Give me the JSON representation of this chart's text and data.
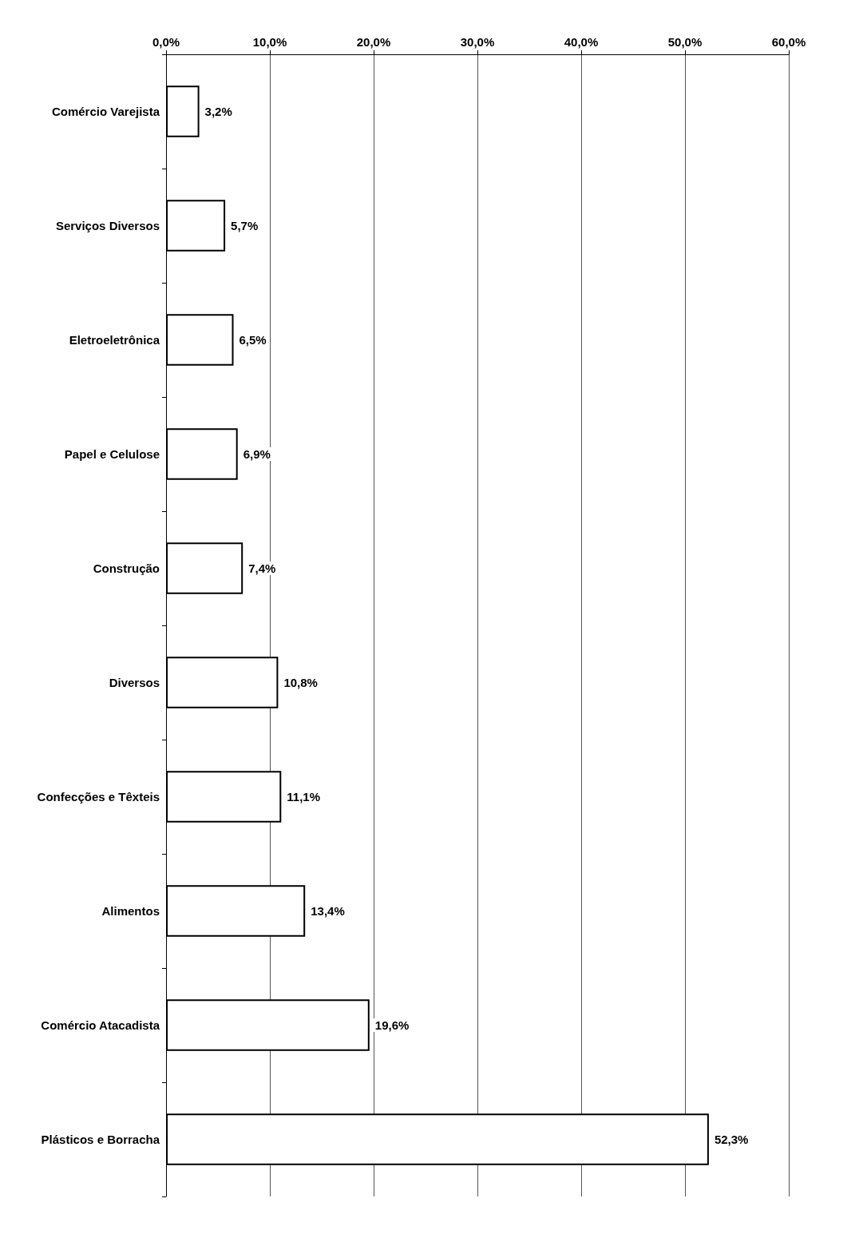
{
  "chart_data": {
    "type": "bar",
    "orientation": "horizontal",
    "categories": [
      "Comércio Varejista",
      "Serviços Diversos",
      "Eletroeletrônica",
      "Papel e Celulose",
      "Construção",
      "Diversos",
      "Confecções e Têxteis",
      "Alimentos",
      "Comércio Atacadista",
      "Plásticos e Borracha"
    ],
    "values": [
      3.2,
      5.7,
      6.5,
      6.9,
      7.4,
      10.8,
      11.1,
      13.4,
      19.6,
      52.3
    ],
    "value_labels": [
      "3,2%",
      "5,7%",
      "6,5%",
      "6,9%",
      "7,4%",
      "10,8%",
      "11,1%",
      "13,4%",
      "19,6%",
      "52,3%"
    ],
    "color": "#ffffff",
    "xlim": [
      0,
      60
    ],
    "xticks": [
      {
        "value": 0,
        "label": "0,0%"
      },
      {
        "value": 10,
        "label": "10,0%"
      },
      {
        "value": 20,
        "label": "20,0%"
      },
      {
        "value": 30,
        "label": "30,0%"
      },
      {
        "value": 40,
        "label": "40,0%"
      },
      {
        "value": 50,
        "label": "50,0%"
      },
      {
        "value": 60,
        "label": "60,0%"
      }
    ],
    "grid": "x"
  }
}
